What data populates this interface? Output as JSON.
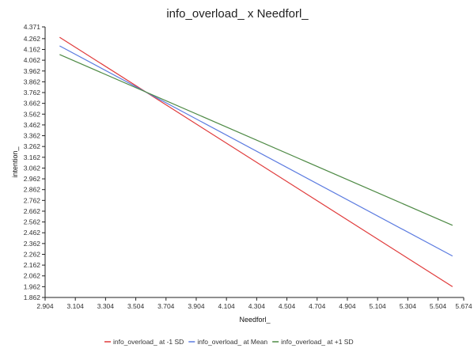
{
  "chart_data": {
    "type": "line",
    "title": "info_overload_ x Needforl_",
    "xlabel": "Needforl_",
    "ylabel": "intention_",
    "xlim": [
      2.904,
      5.674
    ],
    "ylim": [
      1.862,
      4.371
    ],
    "x_ticks": [
      "2.904",
      "3.104",
      "3.304",
      "3.504",
      "3.704",
      "3.904",
      "4.104",
      "4.304",
      "4.504",
      "4.704",
      "4.904",
      "5.104",
      "5.304",
      "5.504",
      "5.674"
    ],
    "x_tick_values": [
      2.904,
      3.104,
      3.304,
      3.504,
      3.704,
      3.904,
      4.104,
      4.304,
      4.504,
      4.704,
      4.904,
      5.104,
      5.304,
      5.504,
      5.674
    ],
    "y_ticks": [
      "4.371",
      "4.262",
      "4.162",
      "4.062",
      "3.962",
      "3.862",
      "3.762",
      "3.662",
      "3.562",
      "3.462",
      "3.362",
      "3.262",
      "3.162",
      "3.062",
      "2.962",
      "2.862",
      "2.762",
      "2.662",
      "2.562",
      "2.462",
      "2.362",
      "2.262",
      "2.162",
      "2.062",
      "1.962",
      "1.862"
    ],
    "y_tick_values": [
      4.371,
      4.262,
      4.162,
      4.062,
      3.962,
      3.862,
      3.762,
      3.662,
      3.562,
      3.462,
      3.362,
      3.262,
      3.162,
      3.062,
      2.962,
      2.862,
      2.762,
      2.662,
      2.562,
      2.462,
      2.362,
      2.262,
      2.162,
      2.062,
      1.962,
      1.862
    ],
    "grid": false,
    "legend_position": "bottom",
    "series": [
      {
        "name": "info_overload_ at -1 SD",
        "color": "#e03a3a",
        "x": [
          3.0,
          5.6
        ],
        "y": [
          4.275,
          1.962
        ]
      },
      {
        "name": "info_overload_ at Mean",
        "color": "#5b7be0",
        "x": [
          3.0,
          5.6
        ],
        "y": [
          4.195,
          2.246
        ]
      },
      {
        "name": "info_overload_ at +1 SD",
        "color": "#4e8a45",
        "x": [
          3.0,
          5.6
        ],
        "y": [
          4.115,
          2.531
        ]
      }
    ]
  }
}
